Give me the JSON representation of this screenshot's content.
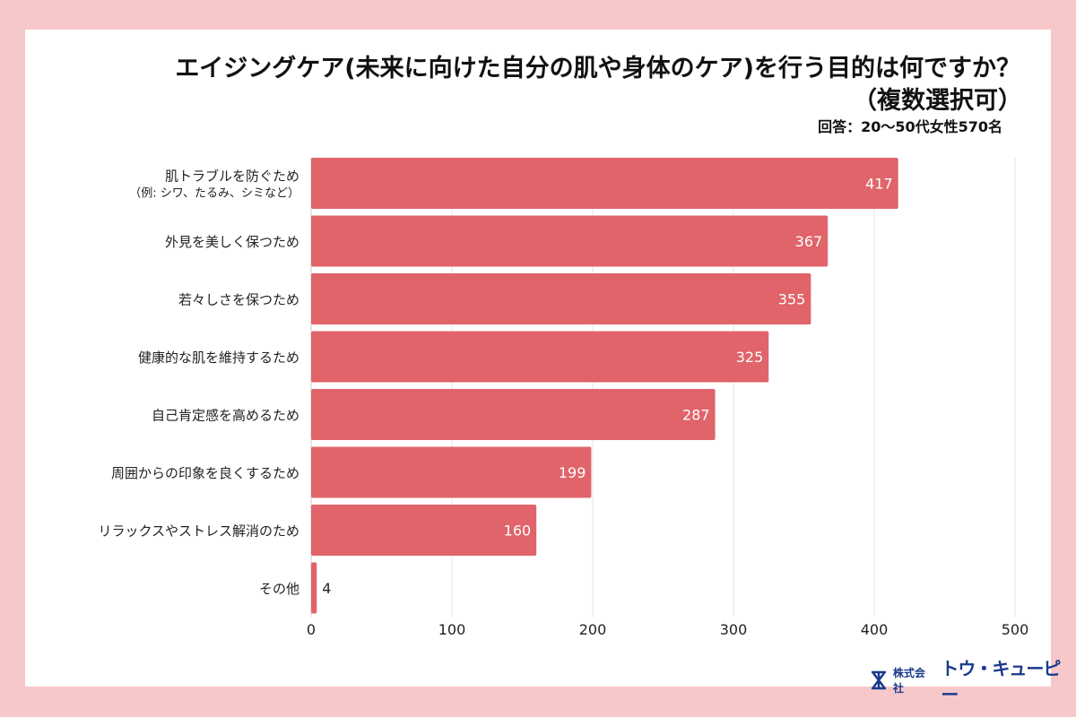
{
  "chart_data": {
    "type": "bar",
    "orientation": "horizontal",
    "title": "エイジングケア(未来に向けた自分の肌や身体のケア)を行う目的は何ですか？",
    "subtitle": "（複数選択可）",
    "note": "回答：20〜50代女性570名",
    "categories": [
      [
        "肌トラブルを防ぐため",
        "（例: シワ、たるみ、シミなど）"
      ],
      [
        "外見を美しく保つため"
      ],
      [
        "若々しさを保つため"
      ],
      [
        "健康的な肌を維持するため"
      ],
      [
        "自己肯定感を高めるため"
      ],
      [
        "周囲からの印象を良くするため"
      ],
      [
        "リラックスやストレス解消のため"
      ],
      [
        "その他"
      ]
    ],
    "values": [
      417,
      367,
      355,
      325,
      287,
      199,
      160,
      4
    ],
    "xlim": [
      0,
      500
    ],
    "xticks": [
      "0",
      "100",
      "200",
      "300",
      "400",
      "500"
    ],
    "grid": true,
    "bar_color": "#e0646a",
    "background_color": "#f7c8ca"
  },
  "logo": {
    "company_prefix": "株式会社",
    "company_name": "トウ・キューピー"
  }
}
